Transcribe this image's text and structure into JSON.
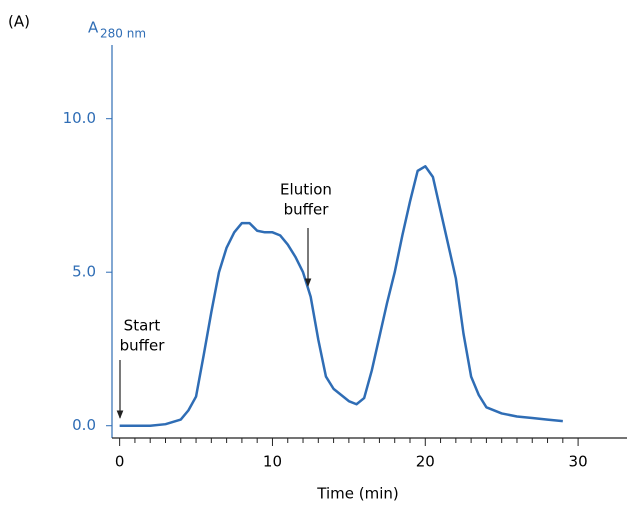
{
  "chart_data": {
    "type": "line",
    "panel_label": "(A)",
    "ylabel": "A",
    "ylabel_sub": "280 nm",
    "xlabel": "Time (min)",
    "x": [
      0,
      2,
      3,
      4,
      4.5,
      5,
      5.5,
      6,
      6.5,
      7,
      7.5,
      8,
      8.5,
      9,
      9.5,
      10,
      10.5,
      11,
      11.5,
      12,
      12.5,
      13,
      13.5,
      14,
      15,
      15.5,
      16,
      16.5,
      17,
      17.5,
      18,
      18.5,
      19,
      19.5,
      20,
      20.5,
      21,
      21.5,
      22,
      22.5,
      23,
      23.5,
      24,
      25,
      26,
      27,
      28,
      29
    ],
    "series": [
      {
        "color": "#2f6db5",
        "values": [
          0.0,
          0.0,
          0.05,
          0.2,
          0.5,
          0.95,
          2.3,
          3.7,
          5.0,
          5.8,
          6.3,
          6.6,
          6.6,
          6.35,
          6.3,
          6.3,
          6.2,
          5.9,
          5.5,
          5.0,
          4.2,
          2.8,
          1.6,
          1.2,
          0.8,
          0.7,
          0.9,
          1.8,
          2.9,
          4.0,
          5.0,
          6.2,
          7.3,
          8.3,
          8.45,
          8.1,
          7.0,
          5.9,
          4.8,
          3.0,
          1.6,
          1.0,
          0.6,
          0.4,
          0.3,
          0.25,
          0.2,
          0.15
        ]
      }
    ],
    "xlim": [
      -0.5,
      33.2
    ],
    "ylim": [
      -0.4,
      12.4
    ],
    "xticks": [
      0,
      10,
      20,
      30
    ],
    "xminorticks": [
      1,
      2,
      3,
      4,
      5,
      6,
      7,
      8,
      9,
      11,
      12,
      13,
      14,
      15,
      16,
      17,
      18,
      19,
      21,
      22,
      23,
      24,
      25,
      26,
      27,
      28,
      29
    ],
    "yticks": [
      {
        "value": 0,
        "label": "0.0"
      },
      {
        "value": 5,
        "label": "5.0"
      },
      {
        "value": 10,
        "label": "10.0"
      }
    ],
    "annotations": [
      {
        "lines": [
          "Start",
          "buffer"
        ]
      },
      {
        "lines": [
          "Elution",
          "buffer"
        ]
      }
    ]
  }
}
